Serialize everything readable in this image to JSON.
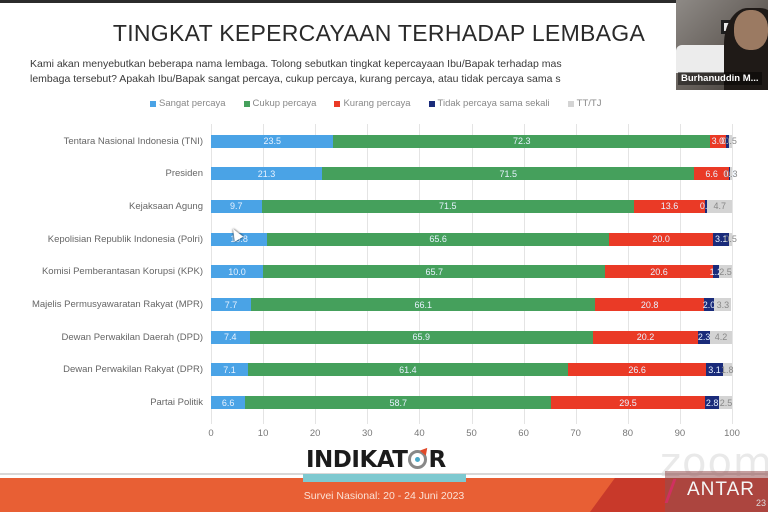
{
  "slide": {
    "title": "TINGKAT KEPERCAYAAN TERHADAP LEMBAGA",
    "question_line1": "Kami akan menyebutkan beberapa nama lembaga. Tolong sebutkan tingkat kepercayaan Ibu/Bapak terhadap mas",
    "question_line2": "lembaga tersebut? Apakah Ibu/Bapak sangat percaya, cukup percaya, kurang percaya, atau tidak percaya sama s",
    "logo": {
      "prefix": "INDIKAT",
      "suffix": "R"
    },
    "footer_text": "Survei Nasional: 20 - 24 Juni 2023"
  },
  "video": {
    "participant_name": "Burhanuddin M..."
  },
  "watermarks": {
    "zoom": "zoom",
    "antara": "ANTAR",
    "antara_number": "23"
  },
  "colors": {
    "sangat": "#4aa3e6",
    "cukup": "#45a05c",
    "kurang": "#ea3a26",
    "tidak": "#1a2b7a",
    "tttj": "#d4d4d4"
  },
  "chart_data": {
    "type": "bar",
    "orientation": "horizontal",
    "stacked": true,
    "title": "TINGKAT KEPERCAYAAN TERHADAP LEMBAGA",
    "xlabel": "",
    "ylabel": "",
    "xlim": [
      0,
      100
    ],
    "xticks": [
      0,
      10,
      20,
      30,
      40,
      50,
      60,
      70,
      80,
      90,
      100
    ],
    "grid": true,
    "legend_position": "top",
    "categories": [
      "Tentara Nasional Indonesia (TNI)",
      "Presiden",
      "Kejaksaan Agung",
      "Kepolisian Republik Indonesia (Polri)",
      "Komisi Pemberantasan Korupsi (KPK)",
      "Majelis Permusyawaratan Rakyat (MPR)",
      "Dewan Perwakilan Daerah (DPD)",
      "Dewan Perwakilan Rakyat (DPR)",
      "Partai Politik"
    ],
    "series": [
      {
        "name": "Sangat percaya",
        "color": "#4aa3e6",
        "values": [
          23.5,
          21.3,
          9.7,
          10.8,
          10.0,
          7.7,
          7.4,
          7.1,
          6.6
        ],
        "labels": [
          "23.5",
          "21.3",
          "9.7",
          "10.8",
          "10.0",
          "7.7",
          "7.4",
          "7.1",
          "6.6"
        ]
      },
      {
        "name": "Cukup percaya",
        "color": "#45a05c",
        "values": [
          72.3,
          71.5,
          71.5,
          65.6,
          65.7,
          66.1,
          65.9,
          61.4,
          58.7
        ],
        "labels": [
          "72.3",
          "71.5",
          "71.5",
          "65.6",
          "65.7",
          "66.1",
          "65.9",
          "61.4",
          "58.7"
        ]
      },
      {
        "name": "Kurang percaya",
        "color": "#ea3a26",
        "values": [
          3.0,
          6.6,
          13.6,
          20.0,
          20.6,
          20.8,
          20.2,
          26.6,
          29.5
        ],
        "labels": [
          "3.0",
          "6.6",
          "13.6",
          "20.0",
          "20.6",
          "20.8",
          "20.2",
          "26.6",
          "29.5"
        ]
      },
      {
        "name": "Tidak percaya sama sekali",
        "color": "#1a2b7a",
        "values": [
          0.7,
          0.3,
          0.5,
          3.1,
          1.2,
          2.0,
          2.3,
          3.1,
          2.8
        ],
        "labels": [
          "0.7",
          "0.3",
          "0.5",
          "3.1",
          "1.2",
          "2.0",
          "2.3",
          "3.1",
          "2.8"
        ]
      },
      {
        "name": "TT/TJ",
        "color": "#d4d4d4",
        "values": [
          0.5,
          0.3,
          4.7,
          0.5,
          2.5,
          3.3,
          4.2,
          1.8,
          2.5
        ],
        "labels": [
          "0.5",
          "0.3",
          "4.7",
          "0.5",
          "2.5",
          "3.3",
          "4.2",
          "1.8",
          "2.5"
        ]
      }
    ]
  }
}
